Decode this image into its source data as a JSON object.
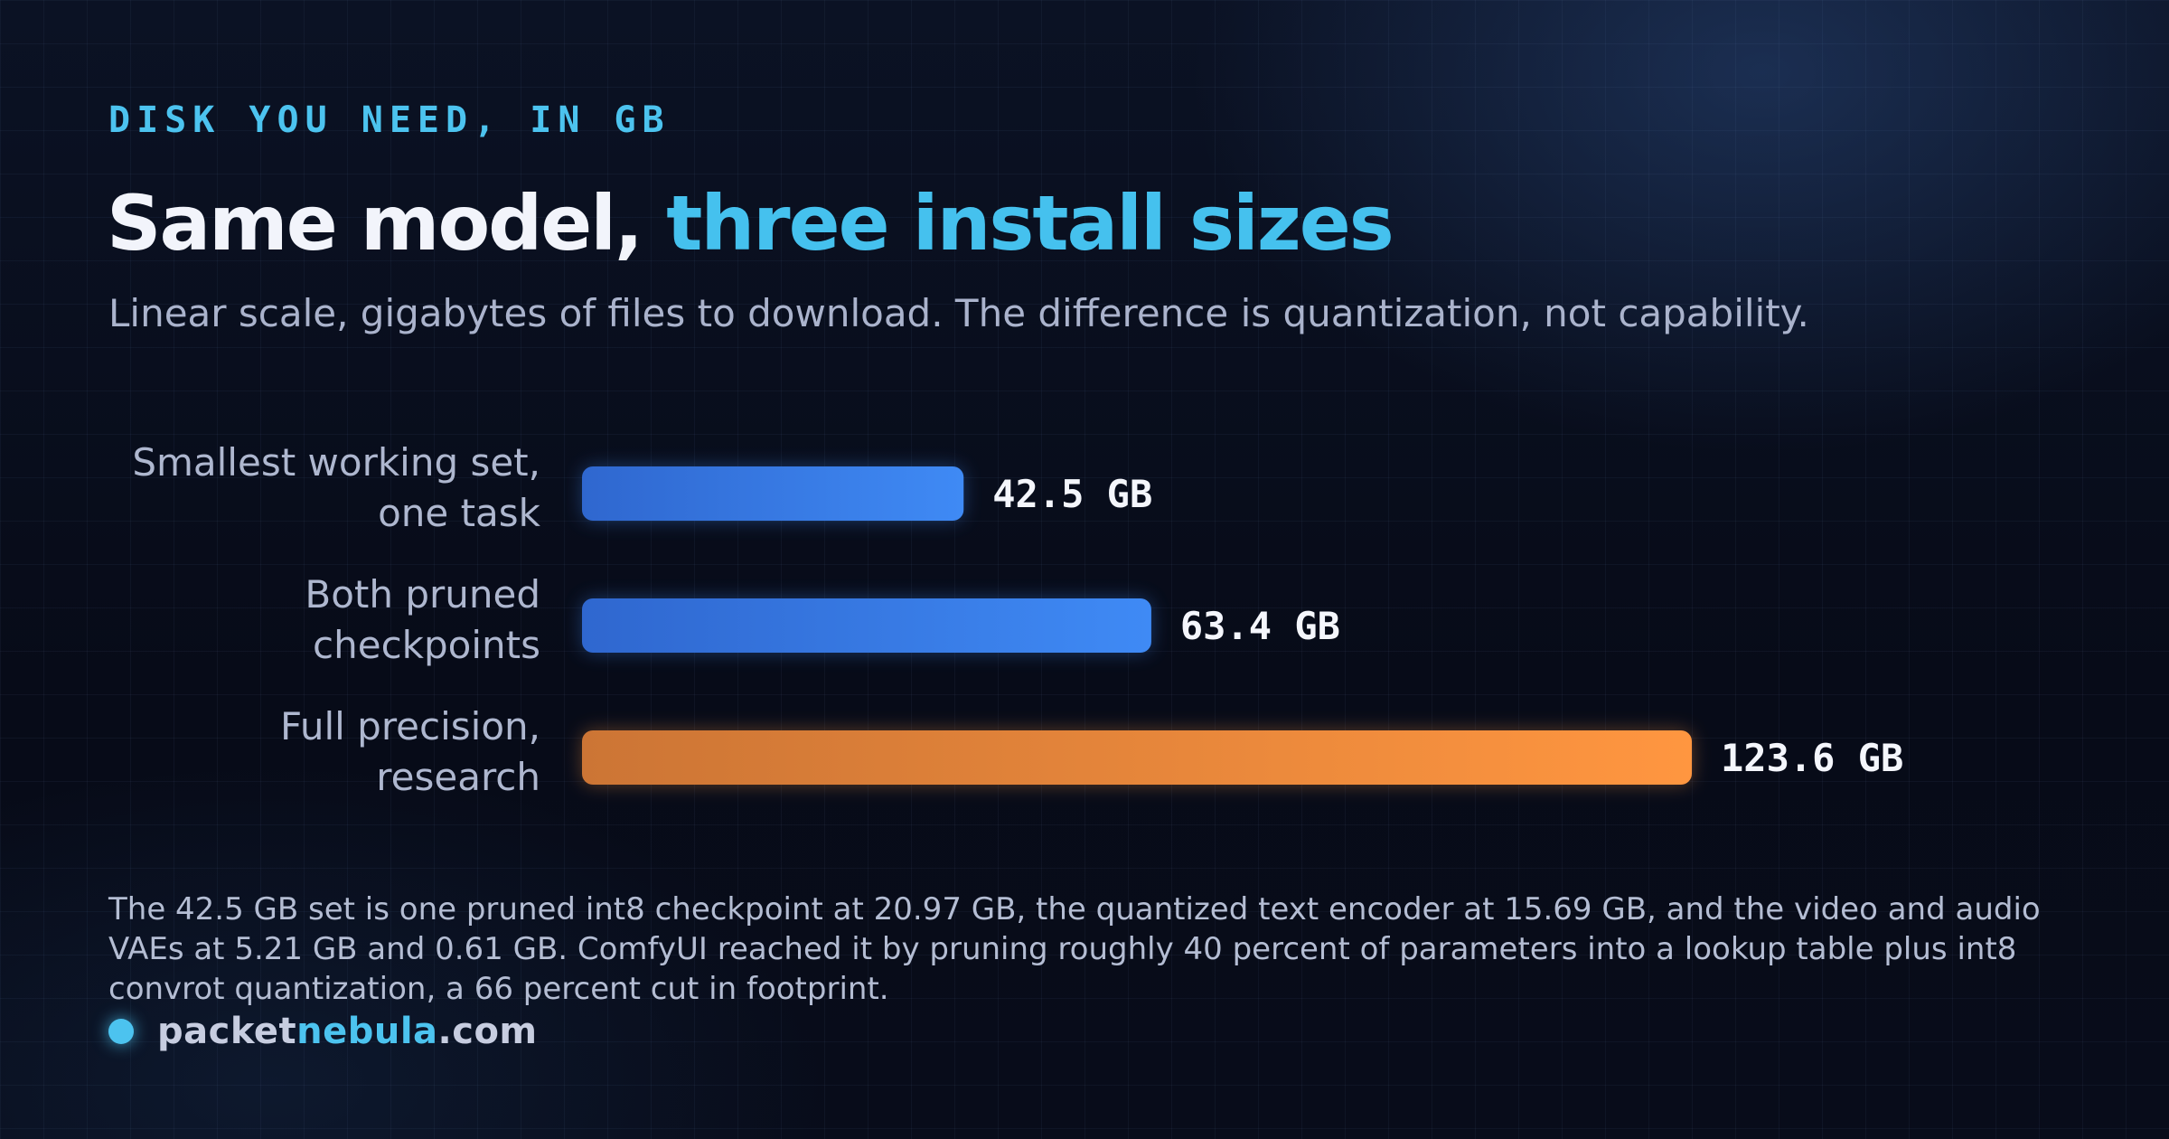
{
  "header": {
    "eyebrow": "DISK YOU NEED, IN GB",
    "title_part1": "Same model, ",
    "title_part2": "three install sizes",
    "subtitle": "Linear scale, gigabytes of files to download. The difference is quantization, not capability."
  },
  "chart_data": {
    "type": "bar",
    "orientation": "horizontal",
    "title": "Same model, three install sizes",
    "categories": [
      [
        "Smallest working set,",
        "one task"
      ],
      [
        "Both pruned",
        "checkpoints"
      ],
      [
        "Full precision,",
        "research"
      ]
    ],
    "values": [
      42.5,
      63.4,
      123.6
    ],
    "value_labels": [
      "42.5 GB",
      "63.4 GB",
      "123.6 GB"
    ],
    "unit": "GB",
    "colors": [
      [
        "#2f67cf",
        "#3f8af5"
      ],
      [
        "#2f67cf",
        "#3f8af5"
      ],
      [
        "#cc7535",
        "#ff9640"
      ]
    ],
    "xlim": [
      0,
      123.6
    ],
    "grid": false,
    "legend": "none"
  },
  "footnote": "The 42.5 GB set is one pruned int8 checkpoint at 20.97 GB, the quantized text encoder at 15.69 GB, and the video and audio VAEs at 5.21 GB and 0.61 GB. ComfyUI reached it by pruning roughly 40 percent of parameters into a lookup table plus int8 convrot quantization, a 66 percent cut in footprint.",
  "brand": {
    "part1": "packet",
    "part2": "nebula",
    "part3": ".com"
  }
}
